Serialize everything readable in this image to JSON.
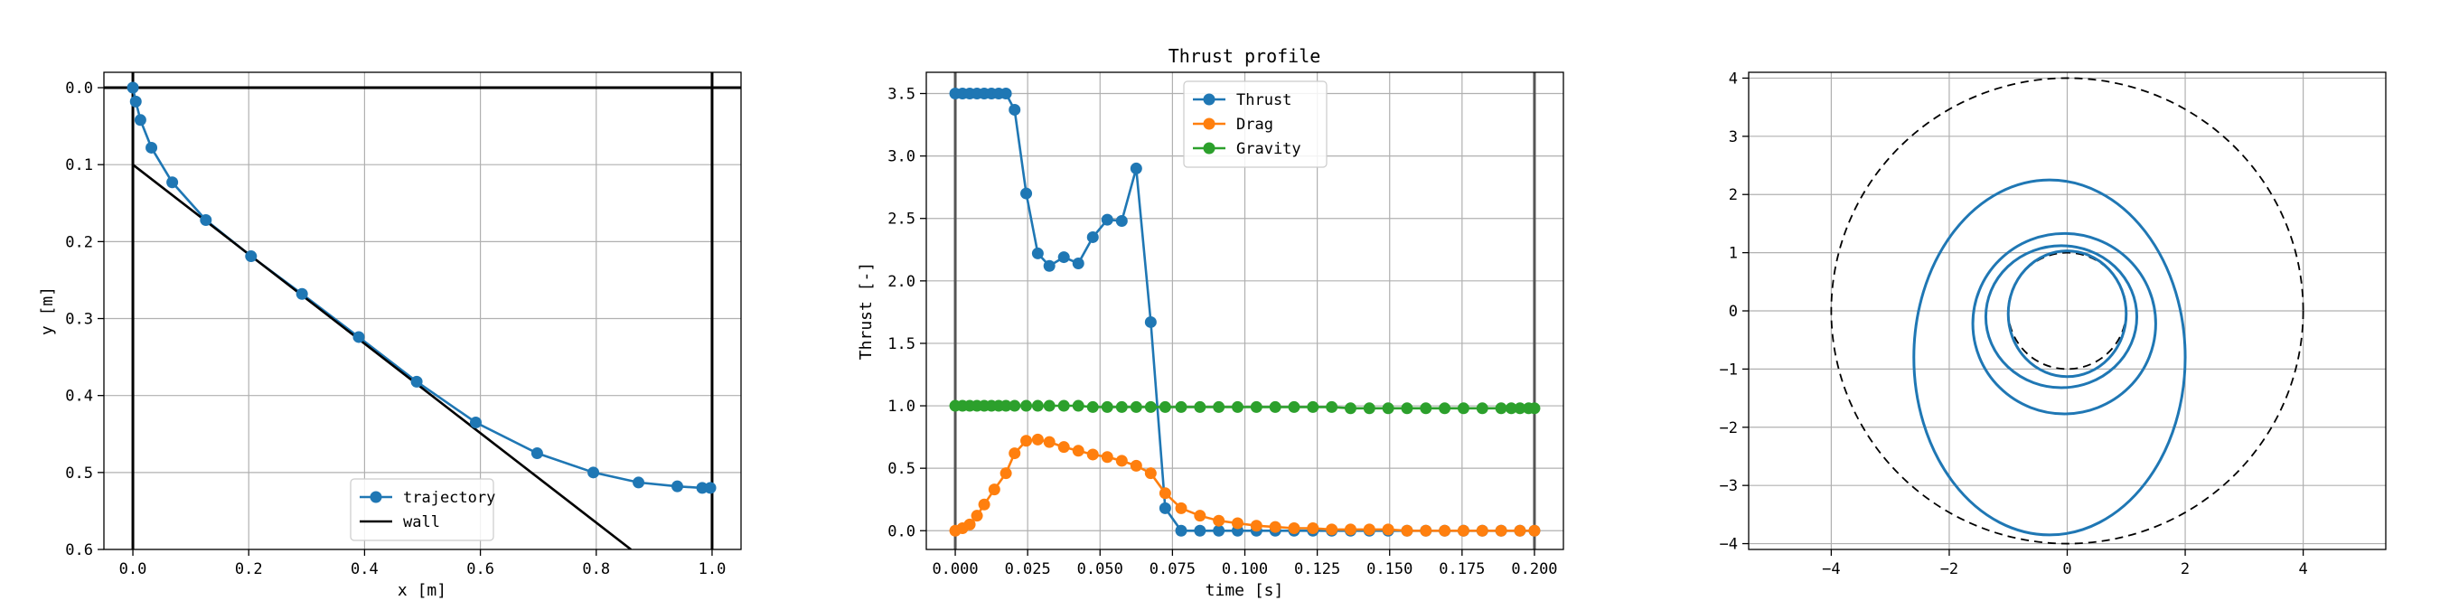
{
  "chart_data": [
    {
      "type": "line",
      "title": "",
      "xlabel": "x [m]",
      "ylabel": "y [m]",
      "xlim": [
        -0.05,
        1.05
      ],
      "ylim": [
        0.6,
        -0.02
      ],
      "y_inverted": true,
      "xticks": [
        "0.0",
        "0.2",
        "0.4",
        "0.6",
        "0.8",
        "1.0"
      ],
      "yticks": [
        "0.0",
        "0.1",
        "0.2",
        "0.3",
        "0.4",
        "0.5",
        "0.6"
      ],
      "grid": true,
      "legend": "lower-center",
      "series": [
        {
          "name": "trajectory",
          "color": "#1f77b4",
          "marker": "circle",
          "x": [
            0.0,
            0.005,
            0.013,
            0.032,
            0.068,
            0.126,
            0.204,
            0.292,
            0.39,
            0.49,
            0.592,
            0.698,
            0.795,
            0.873,
            0.94,
            0.983,
            0.997
          ],
          "y": [
            0.0,
            0.018,
            0.042,
            0.078,
            0.123,
            0.172,
            0.219,
            0.268,
            0.324,
            0.382,
            0.435,
            0.475,
            0.5,
            0.513,
            0.518,
            0.52,
            0.52
          ]
        },
        {
          "name": "wall",
          "color": "#000000",
          "x": [
            0.0,
            0.86
          ],
          "y": [
            0.1,
            0.6
          ]
        }
      ],
      "reference_lines": [
        {
          "orientation": "horizontal",
          "value": 0.0,
          "color": "#000000"
        },
        {
          "orientation": "vertical",
          "value": 0.0,
          "color": "#000000"
        },
        {
          "orientation": "vertical",
          "value": 1.0,
          "color": "#000000"
        }
      ]
    },
    {
      "type": "line",
      "title": "Thrust profile",
      "xlabel": "time [s]",
      "ylabel": "Thrust [-]",
      "xlim": [
        -0.01,
        0.21
      ],
      "ylim": [
        -0.15,
        3.67
      ],
      "xticks": [
        "0.000",
        "0.025",
        "0.050",
        "0.075",
        "0.100",
        "0.125",
        "0.150",
        "0.175",
        "0.200"
      ],
      "yticks": [
        "0.0",
        "0.5",
        "1.0",
        "1.5",
        "2.0",
        "2.5",
        "3.0",
        "3.5"
      ],
      "grid": true,
      "legend": "upper-center",
      "series": [
        {
          "name": "Thrust",
          "color": "#1f77b4",
          "marker": "circle",
          "x": [
            0.0,
            0.0025,
            0.005,
            0.0075,
            0.01,
            0.0125,
            0.015,
            0.0175,
            0.0205,
            0.0245,
            0.0285,
            0.0325,
            0.0375,
            0.0425,
            0.0475,
            0.0525,
            0.0575,
            0.0625,
            0.0675,
            0.0725,
            0.078,
            0.0845,
            0.091,
            0.0975,
            0.104,
            0.1105,
            0.117,
            0.1235,
            0.13,
            0.1365,
            0.143,
            0.1495,
            0.156,
            0.1625,
            0.169,
            0.1755,
            0.182,
            0.1885,
            0.195,
            0.2
          ],
          "y": [
            3.5,
            3.5,
            3.5,
            3.5,
            3.5,
            3.5,
            3.5,
            3.5,
            3.37,
            2.7,
            2.22,
            2.12,
            2.19,
            2.14,
            2.35,
            2.49,
            2.48,
            2.9,
            1.67,
            0.18,
            0.0,
            0.0,
            0.0,
            0.0,
            0.0,
            0.0,
            0.0,
            0.0,
            0.0,
            0.0,
            0.0,
            0.0,
            0.0,
            0.0,
            0.0,
            0.0,
            0.0,
            0.0,
            0.0,
            0.0
          ]
        },
        {
          "name": "Drag",
          "color": "#ff7f0e",
          "marker": "circle",
          "x": [
            0.0,
            0.0025,
            0.005,
            0.0075,
            0.01,
            0.0135,
            0.0175,
            0.0205,
            0.0245,
            0.0285,
            0.0325,
            0.0375,
            0.0425,
            0.0475,
            0.0525,
            0.0575,
            0.0625,
            0.0675,
            0.0725,
            0.078,
            0.0845,
            0.091,
            0.0975,
            0.104,
            0.1105,
            0.117,
            0.1235,
            0.13,
            0.1365,
            0.143,
            0.1495,
            0.156,
            0.1625,
            0.169,
            0.1755,
            0.182,
            0.1885,
            0.195,
            0.2
          ],
          "y": [
            0.0,
            0.02,
            0.05,
            0.12,
            0.21,
            0.33,
            0.46,
            0.62,
            0.72,
            0.73,
            0.71,
            0.67,
            0.64,
            0.61,
            0.59,
            0.56,
            0.52,
            0.46,
            0.3,
            0.18,
            0.12,
            0.08,
            0.06,
            0.04,
            0.03,
            0.02,
            0.02,
            0.01,
            0.01,
            0.01,
            0.01,
            0.0,
            0.0,
            0.0,
            0.0,
            0.0,
            0.0,
            0.0,
            0.0
          ]
        },
        {
          "name": "Gravity",
          "color": "#2ca02c",
          "marker": "circle",
          "x": [
            0.0,
            0.0025,
            0.005,
            0.0075,
            0.01,
            0.0125,
            0.015,
            0.0175,
            0.0205,
            0.0245,
            0.0285,
            0.0325,
            0.0375,
            0.0425,
            0.0475,
            0.0525,
            0.0575,
            0.0625,
            0.0675,
            0.0725,
            0.078,
            0.0845,
            0.091,
            0.0975,
            0.104,
            0.1105,
            0.117,
            0.1235,
            0.13,
            0.1365,
            0.143,
            0.1495,
            0.156,
            0.1625,
            0.169,
            0.1755,
            0.182,
            0.1885,
            0.192,
            0.195,
            0.198,
            0.2
          ],
          "y": [
            1.0,
            1.0,
            1.0,
            1.0,
            1.0,
            1.0,
            1.0,
            1.0,
            1.0,
            1.0,
            1.0,
            1.0,
            1.0,
            1.0,
            0.99,
            0.99,
            0.99,
            0.99,
            0.99,
            0.99,
            0.99,
            0.99,
            0.99,
            0.99,
            0.99,
            0.99,
            0.99,
            0.99,
            0.99,
            0.98,
            0.98,
            0.98,
            0.98,
            0.98,
            0.98,
            0.98,
            0.98,
            0.98,
            0.98,
            0.98,
            0.98,
            0.98
          ]
        }
      ],
      "reference_lines": [
        {
          "orientation": "vertical",
          "value": 0.0,
          "color": "#555555"
        },
        {
          "orientation": "vertical",
          "value": 0.2,
          "color": "#555555"
        }
      ]
    },
    {
      "type": "line",
      "title": "",
      "xlabel": "",
      "ylabel": "",
      "xlim": [
        -5.4,
        5.4
      ],
      "ylim": [
        -4.1,
        4.1
      ],
      "xticks": [
        "−4",
        "−2",
        "0",
        "2",
        "4"
      ],
      "yticks": [
        "−4",
        "−3",
        "−2",
        "−1",
        "0",
        "1",
        "2",
        "3",
        "4"
      ],
      "grid": true,
      "series": [
        {
          "name": "",
          "color": "#1f77b4",
          "spiral_turns": [
            {
              "center": [
                0.0,
                -0.05
              ],
              "rx": 1.0,
              "ry": 1.08
            },
            {
              "center": [
                -0.1,
                -0.1
              ],
              "rx": 1.28,
              "ry": 1.22
            },
            {
              "center": [
                -0.05,
                -0.22
              ],
              "rx": 1.55,
              "ry": 1.55
            },
            {
              "center": [
                -0.3,
                -0.8
              ],
              "rx": 2.3,
              "ry": 3.05
            }
          ]
        }
      ],
      "reference_circles": [
        {
          "center": [
            0,
            0
          ],
          "radius": 1.0,
          "style": "dashed",
          "color": "#000000"
        },
        {
          "center": [
            0,
            0
          ],
          "radius": 4.0,
          "style": "dashed",
          "color": "#000000"
        }
      ]
    }
  ]
}
